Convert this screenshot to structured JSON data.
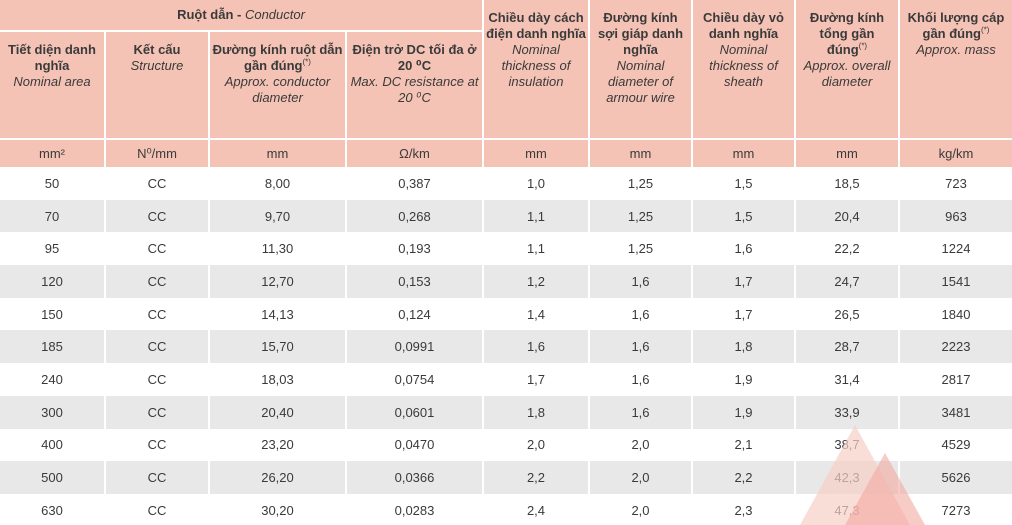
{
  "header": {
    "conductor_group": "Ruột dẫn",
    "conductor_group_en": "Conductor",
    "columns": [
      {
        "vi": "Tiết diện danh nghĩa",
        "en": "Nominal area",
        "unit": "mm²"
      },
      {
        "vi": "Kết cấu",
        "en": "Structure",
        "unit": "N⁰/mm"
      },
      {
        "vi": "Đường kính ruột dẫn gần đúng",
        "mark": "(*)",
        "en": "Approx. conductor diameter",
        "unit": "mm"
      },
      {
        "vi": "Điện trở DC tối đa ở 20 ⁰C",
        "en": "Max. DC resistance at 20 ⁰C",
        "unit": "Ω/km"
      },
      {
        "vi": "Chiều dày cách điện danh nghĩa",
        "en": "Nominal thickness of insulation",
        "unit": "mm"
      },
      {
        "vi": "Đường kính sợi giáp danh nghĩa",
        "en": "Nominal diameter of armour wire",
        "unit": "mm"
      },
      {
        "vi": "Chiều dày vỏ danh nghĩa",
        "en": "Nominal thickness of sheath",
        "unit": "mm"
      },
      {
        "vi": "Đường kính tổng gần đúng",
        "mark": "(*)",
        "en": "Approx. overall diameter",
        "unit": "mm"
      },
      {
        "vi": "Khối lượng cáp gần đúng",
        "mark": "(*)",
        "en": "Approx. mass",
        "unit": "kg/km"
      }
    ]
  },
  "rows": [
    [
      "50",
      "CC",
      "8,00",
      "0,387",
      "1,0",
      "1,25",
      "1,5",
      "18,5",
      "723"
    ],
    [
      "70",
      "CC",
      "9,70",
      "0,268",
      "1,1",
      "1,25",
      "1,5",
      "20,4",
      "963"
    ],
    [
      "95",
      "CC",
      "11,30",
      "0,193",
      "1,1",
      "1,25",
      "1,6",
      "22,2",
      "1224"
    ],
    [
      "120",
      "CC",
      "12,70",
      "0,153",
      "1,2",
      "1,6",
      "1,7",
      "24,7",
      "1541"
    ],
    [
      "150",
      "CC",
      "14,13",
      "0,124",
      "1,4",
      "1,6",
      "1,7",
      "26,5",
      "1840"
    ],
    [
      "185",
      "CC",
      "15,70",
      "0,0991",
      "1,6",
      "1,6",
      "1,8",
      "28,7",
      "2223"
    ],
    [
      "240",
      "CC",
      "18,03",
      "0,0754",
      "1,7",
      "1,6",
      "1,9",
      "31,4",
      "2817"
    ],
    [
      "300",
      "CC",
      "20,40",
      "0,0601",
      "1,8",
      "1,6",
      "1,9",
      "33,9",
      "3481"
    ],
    [
      "400",
      "CC",
      "23,20",
      "0,0470",
      "2,0",
      "2,0",
      "2,1",
      "38,7",
      "4529"
    ],
    [
      "500",
      "CC",
      "26,20",
      "0,0366",
      "2,2",
      "2,0",
      "2,2",
      "42,3",
      "5626"
    ],
    [
      "630",
      "CC",
      "30,20",
      "0,0283",
      "2,4",
      "2,0",
      "2,3",
      "47,3",
      "7273"
    ]
  ],
  "colors": {
    "header_bg": "#f5c3b5",
    "stripe": "#e8e8e8",
    "watermark": "#f7cfc6"
  }
}
